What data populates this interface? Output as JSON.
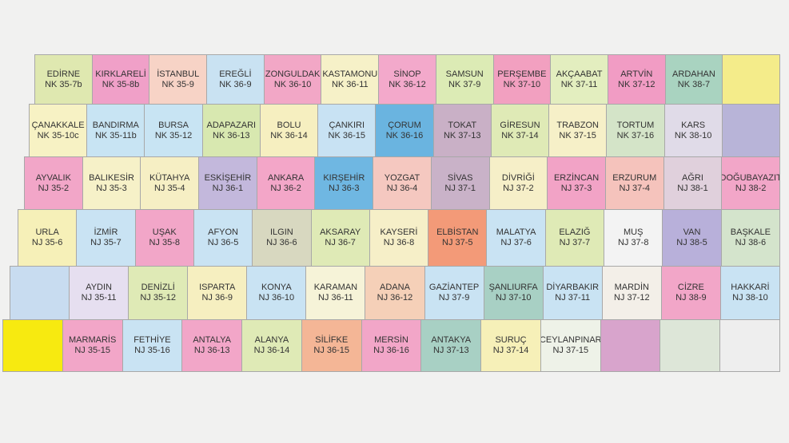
{
  "map": {
    "rows": [
      [
        {
          "name": "EDİRNE",
          "code": "NK 35-7b",
          "color": "#dfe8b0"
        },
        {
          "name": "KIRKLARELİ",
          "code": "NK 35-8b",
          "color": "#f0a0c8"
        },
        {
          "name": "İSTANBUL",
          "code": "NK 35-9",
          "color": "#f7d3c6"
        },
        {
          "name": "EREĞLİ",
          "code": "NK 36-9",
          "color": "#c9e2f2"
        },
        {
          "name": "ZONGULDAK",
          "code": "NK 36-10",
          "color": "#f2a7c6"
        },
        {
          "name": "KASTAMONU",
          "code": "NK 36-11",
          "color": "#f6f1c8"
        },
        {
          "name": "SİNOP",
          "code": "NK 36-12",
          "color": "#f3a9cb"
        },
        {
          "name": "SAMSUN",
          "code": "NK 37-9",
          "color": "#dcebb5"
        },
        {
          "name": "PERŞEMBE",
          "code": "NK 37-10",
          "color": "#f2a0c0"
        },
        {
          "name": "AKÇAABAT",
          "code": "NK 37-11",
          "color": "#e3eebf"
        },
        {
          "name": "ARTVİN",
          "code": "NK 37-12",
          "color": "#f19cc4"
        },
        {
          "name": "ARDAHAN",
          "code": "NK 38-7",
          "color": "#a9d3c0"
        },
        {
          "color": "#f4ec8a"
        }
      ],
      [
        {
          "name": "ÇANAKKALE",
          "code": "NK 35-10c",
          "color": "#f7f2c4"
        },
        {
          "name": "BANDIRMA",
          "code": "NK 35-11b",
          "color": "#c8e4f3"
        },
        {
          "name": "BURSA",
          "code": "NK 35-12",
          "color": "#c8e4f3"
        },
        {
          "name": "ADAPAZARI",
          "code": "NK 36-13",
          "color": "#d8e8b0"
        },
        {
          "name": "BOLU",
          "code": "NK 36-14",
          "color": "#f6efc0"
        },
        {
          "name": "ÇANKIRI",
          "code": "NK 36-15",
          "color": "#c8e2f3"
        },
        {
          "name": "ÇORUM",
          "code": "NK 36-16",
          "color": "#6ab4e0"
        },
        {
          "name": "TOKAT",
          "code": "NK 37-13",
          "color": "#c9b0c6"
        },
        {
          "name": "GİRESUN",
          "code": "NK 37-14",
          "color": "#dfeab6"
        },
        {
          "name": "TRABZON",
          "code": "NK 37-15",
          "color": "#f6f0c8"
        },
        {
          "name": "TORTUM",
          "code": "NK 37-16",
          "color": "#d4e4c8"
        },
        {
          "name": "KARS",
          "code": "NK 38-10",
          "color": "#e0dbe8"
        },
        {
          "color": "#b8b4d8"
        }
      ],
      [
        {
          "name": "AYVALIK",
          "code": "NJ 35-2",
          "color": "#f2a6c8"
        },
        {
          "name": "BALIKESİR",
          "code": "NJ 35-3",
          "color": "#f6f1c8"
        },
        {
          "name": "KÜTAHYA",
          "code": "NJ 35-4",
          "color": "#f6efc4"
        },
        {
          "name": "ESKİŞEHİR",
          "code": "NJ 36-1",
          "color": "#c3b8dc"
        },
        {
          "name": "ANKARA",
          "code": "NJ 36-2",
          "color": "#f3a6c8"
        },
        {
          "name": "KIRŞEHİR",
          "code": "NJ 36-3",
          "color": "#6fb7e2"
        },
        {
          "name": "YOZGAT",
          "code": "NJ 36-4",
          "color": "#f5c8c0"
        },
        {
          "name": "SİVAS",
          "code": "NJ 37-1",
          "color": "#c9b2c8"
        },
        {
          "name": "DİVRİĞİ",
          "code": "NJ 37-2",
          "color": "#f6efc8"
        },
        {
          "name": "ERZİNCAN",
          "code": "NJ 37-3",
          "color": "#f2a3c6"
        },
        {
          "name": "ERZURUM",
          "code": "NJ 37-4",
          "color": "#f5c3bc"
        },
        {
          "name": "AĞRI",
          "code": "NJ 38-1",
          "color": "#e0d0dc"
        },
        {
          "name": "DOĞUBAYAZIT",
          "code": "NJ 38-2",
          "color": "#f2a6c8"
        }
      ],
      [
        {
          "name": "URLA",
          "code": "NJ 35-6",
          "color": "#f6f0b8"
        },
        {
          "name": "İZMİR",
          "code": "NJ 35-7",
          "color": "#c9e3f3"
        },
        {
          "name": "UŞAK",
          "code": "NJ 35-8",
          "color": "#f2a6c8"
        },
        {
          "name": "AFYON",
          "code": "NJ 36-5",
          "color": "#c9e3f3"
        },
        {
          "name": "ILGIN",
          "code": "NJ 36-6",
          "color": "#d8d8c0"
        },
        {
          "name": "AKSARAY",
          "code": "NJ 36-7",
          "color": "#dfeab6"
        },
        {
          "name": "KAYSERİ",
          "code": "NJ 36-8",
          "color": "#f6efc8"
        },
        {
          "name": "ELBİSTAN",
          "code": "NJ 37-5",
          "color": "#f39a78"
        },
        {
          "name": "MALATYA",
          "code": "NJ 37-6",
          "color": "#c9e3f3"
        },
        {
          "name": "ELAZIĞ",
          "code": "NJ 37-7",
          "color": "#dfeab6"
        },
        {
          "name": "MUŞ",
          "code": "NJ 37-8",
          "color": "#f3f3f3"
        },
        {
          "name": "VAN",
          "code": "NJ 38-5",
          "color": "#b8b0da"
        },
        {
          "name": "BAŞKALE",
          "code": "NJ 38-6",
          "color": "#d4e4cc"
        }
      ],
      [
        {
          "color": "#c8dcf0"
        },
        {
          "name": "AYDIN",
          "code": "NJ 35-11",
          "color": "#e6dff0"
        },
        {
          "name": "DENİZLİ",
          "code": "NJ 35-12",
          "color": "#dfeab6"
        },
        {
          "name": "ISPARTA",
          "code": "NJ 36-9",
          "color": "#f6efc0"
        },
        {
          "name": "KONYA",
          "code": "NJ 36-10",
          "color": "#c9e3f3"
        },
        {
          "name": "KARAMAN",
          "code": "NJ 36-11",
          "color": "#f6f3d8"
        },
        {
          "name": "ADANA",
          "code": "NJ 36-12",
          "color": "#f5d0b8"
        },
        {
          "name": "GAZİANTEP",
          "code": "NJ 37-9",
          "color": "#c9e3f3"
        },
        {
          "name": "ŞANLIURFA",
          "code": "NJ 37-10",
          "color": "#a8d0c4"
        },
        {
          "name": "DİYARBAKIR",
          "code": "NJ 37-11",
          "color": "#c9e3f3"
        },
        {
          "name": "MARDİN",
          "code": "NJ 37-12",
          "color": "#f3efe8"
        },
        {
          "name": "CİZRE",
          "code": "NJ 38-9",
          "color": "#f2a6c8"
        },
        {
          "name": "HAKKARİ",
          "code": "NJ 38-10",
          "color": "#c9e3f3"
        }
      ],
      [
        {
          "color": "#f7ea10"
        },
        {
          "name": "MARMARİS",
          "code": "NJ 35-15",
          "color": "#f2a6c8"
        },
        {
          "name": "FETHİYE",
          "code": "NJ 35-16",
          "color": "#c9e3f3"
        },
        {
          "name": "ANTALYA",
          "code": "NJ 36-13",
          "color": "#f2a6c8"
        },
        {
          "name": "ALANYA",
          "code": "NJ 36-14",
          "color": "#dfeab6"
        },
        {
          "name": "SİLİFKE",
          "code": "NJ 36-15",
          "color": "#f4b696"
        },
        {
          "name": "MERSİN",
          "code": "NJ 36-16",
          "color": "#f2a6c8"
        },
        {
          "name": "ANTAKYA",
          "code": "NJ 37-13",
          "color": "#a8d0c4"
        },
        {
          "name": "SURUÇ",
          "code": "NJ 37-14",
          "color": "#f6f0b8"
        },
        {
          "name": "CEYLANPINAR",
          "code": "NJ 37-15",
          "color": "#eef2e8"
        },
        {
          "color": "#d8a4cc"
        },
        {
          "color": "#dde6d8"
        },
        {
          "color": "#eeeeee"
        }
      ]
    ]
  }
}
